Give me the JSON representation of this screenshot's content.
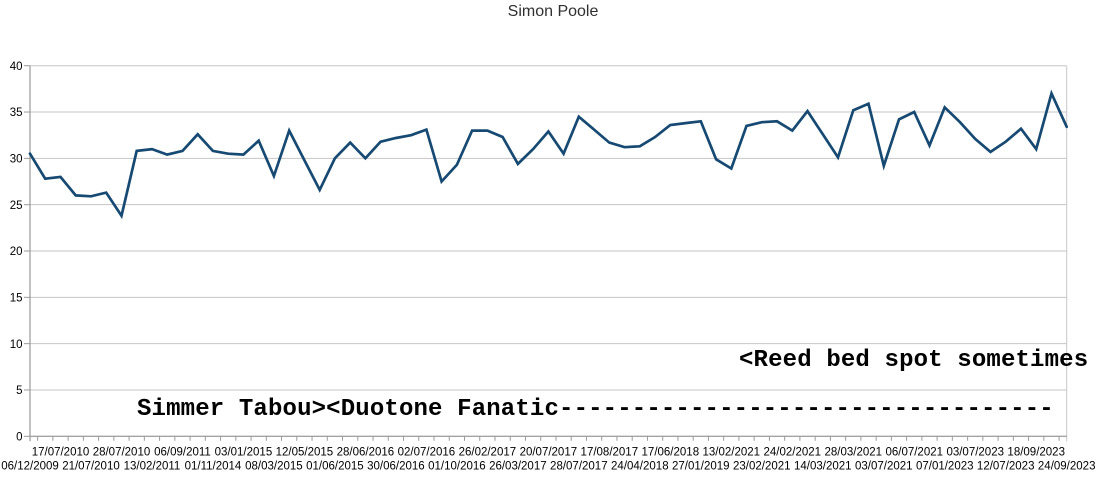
{
  "chart_data": {
    "type": "line",
    "title": "Simon Poole",
    "xlabel": "",
    "ylabel": "",
    "ylim": [
      0,
      40
    ],
    "y_ticks": [
      0,
      5,
      10,
      15,
      20,
      25,
      30,
      35,
      40
    ],
    "grid": "horizontal",
    "legend": "none",
    "x_label_every": 2,
    "categories": [
      "06/12/2009",
      "17/07/2010",
      "21/07/2010",
      "28/07/2010",
      "13/02/2011",
      "06/09/2011",
      "01/11/2014",
      "03/01/2015",
      "08/03/2015",
      "12/05/2015",
      "01/06/2015",
      "28/06/2016",
      "30/06/2016",
      "02/07/2016",
      "01/10/2016",
      "26/02/2017",
      "26/03/2017",
      "20/07/2017",
      "28/07/2017",
      "17/08/2017",
      "24/04/2018",
      "17/06/2018",
      "27/01/2019",
      "13/02/2021",
      "23/02/2021",
      "24/02/2021",
      "14/03/2021",
      "28/03/2021",
      "03/07/2021",
      "06/07/2021",
      "07/01/2023",
      "03/07/2023",
      "12/07/2023",
      "18/09/2023",
      "24/09/2023"
    ],
    "x_axis": {
      "stagger_rows": 2,
      "row1_labels": [
        "17/07/2010",
        "28/07/2010",
        "06/09/2011",
        "03/01/2015",
        "12/05/2015",
        "28/06/2016",
        "02/07/2016",
        "26/02/2017",
        "20/07/2017",
        "17/08/2017",
        "17/06/2018",
        "13/02/2021",
        "24/02/2021",
        "28/03/2021",
        "06/07/2021",
        "03/07/2023",
        "18/09/2023"
      ],
      "row2_labels": [
        "06/12/2009",
        "21/07/2010",
        "13/02/2011",
        "01/11/2014",
        "08/03/2015",
        "01/06/2015",
        "30/06/2016",
        "01/10/2016",
        "26/03/2017",
        "28/07/2017",
        "24/04/2018",
        "27/01/2019",
        "23/02/2021",
        "14/03/2021",
        "03/07/2021",
        "07/01/2023",
        "12/07/2023",
        "24/09/2023"
      ]
    },
    "series": [
      {
        "name": "Simon Poole",
        "color": "#174a72",
        "values": [
          30.5,
          27.8,
          28.0,
          26.0,
          25.9,
          26.3,
          23.8,
          30.8,
          31.0,
          30.4,
          30.8,
          32.6,
          30.8,
          30.5,
          30.4,
          31.9,
          28.1,
          33.0,
          29.8,
          26.6,
          30.0,
          31.7,
          30.0,
          31.8,
          32.2,
          32.5,
          33.1,
          27.5,
          29.3,
          33.0,
          33.0,
          32.3,
          29.4,
          31.0,
          32.9,
          30.5,
          34.5,
          33.1,
          31.7,
          31.2,
          31.3,
          32.3,
          33.6,
          33.8,
          34.0,
          29.9,
          28.9,
          33.5,
          33.9,
          34.0,
          33.0,
          35.1,
          32.6,
          30.1,
          35.2,
          35.9,
          29.2,
          34.2,
          35.0,
          31.4,
          35.5,
          33.9,
          32.1,
          30.7,
          31.8,
          33.2,
          31.0,
          37.0,
          33.4
        ]
      }
    ],
    "annotations": [
      {
        "id": "boards",
        "text": "Simmer Tabou><Duotone Fanatic----------------------------------"
      },
      {
        "id": "reed",
        "text": "<Reed bed spot sometimes"
      }
    ],
    "colors": {
      "line": "#174a72",
      "gridline": "#c6c6c6",
      "axis": "#9a9a9a",
      "label_text": "#000000",
      "title_text": "#303030",
      "background": "#ffffff"
    }
  }
}
